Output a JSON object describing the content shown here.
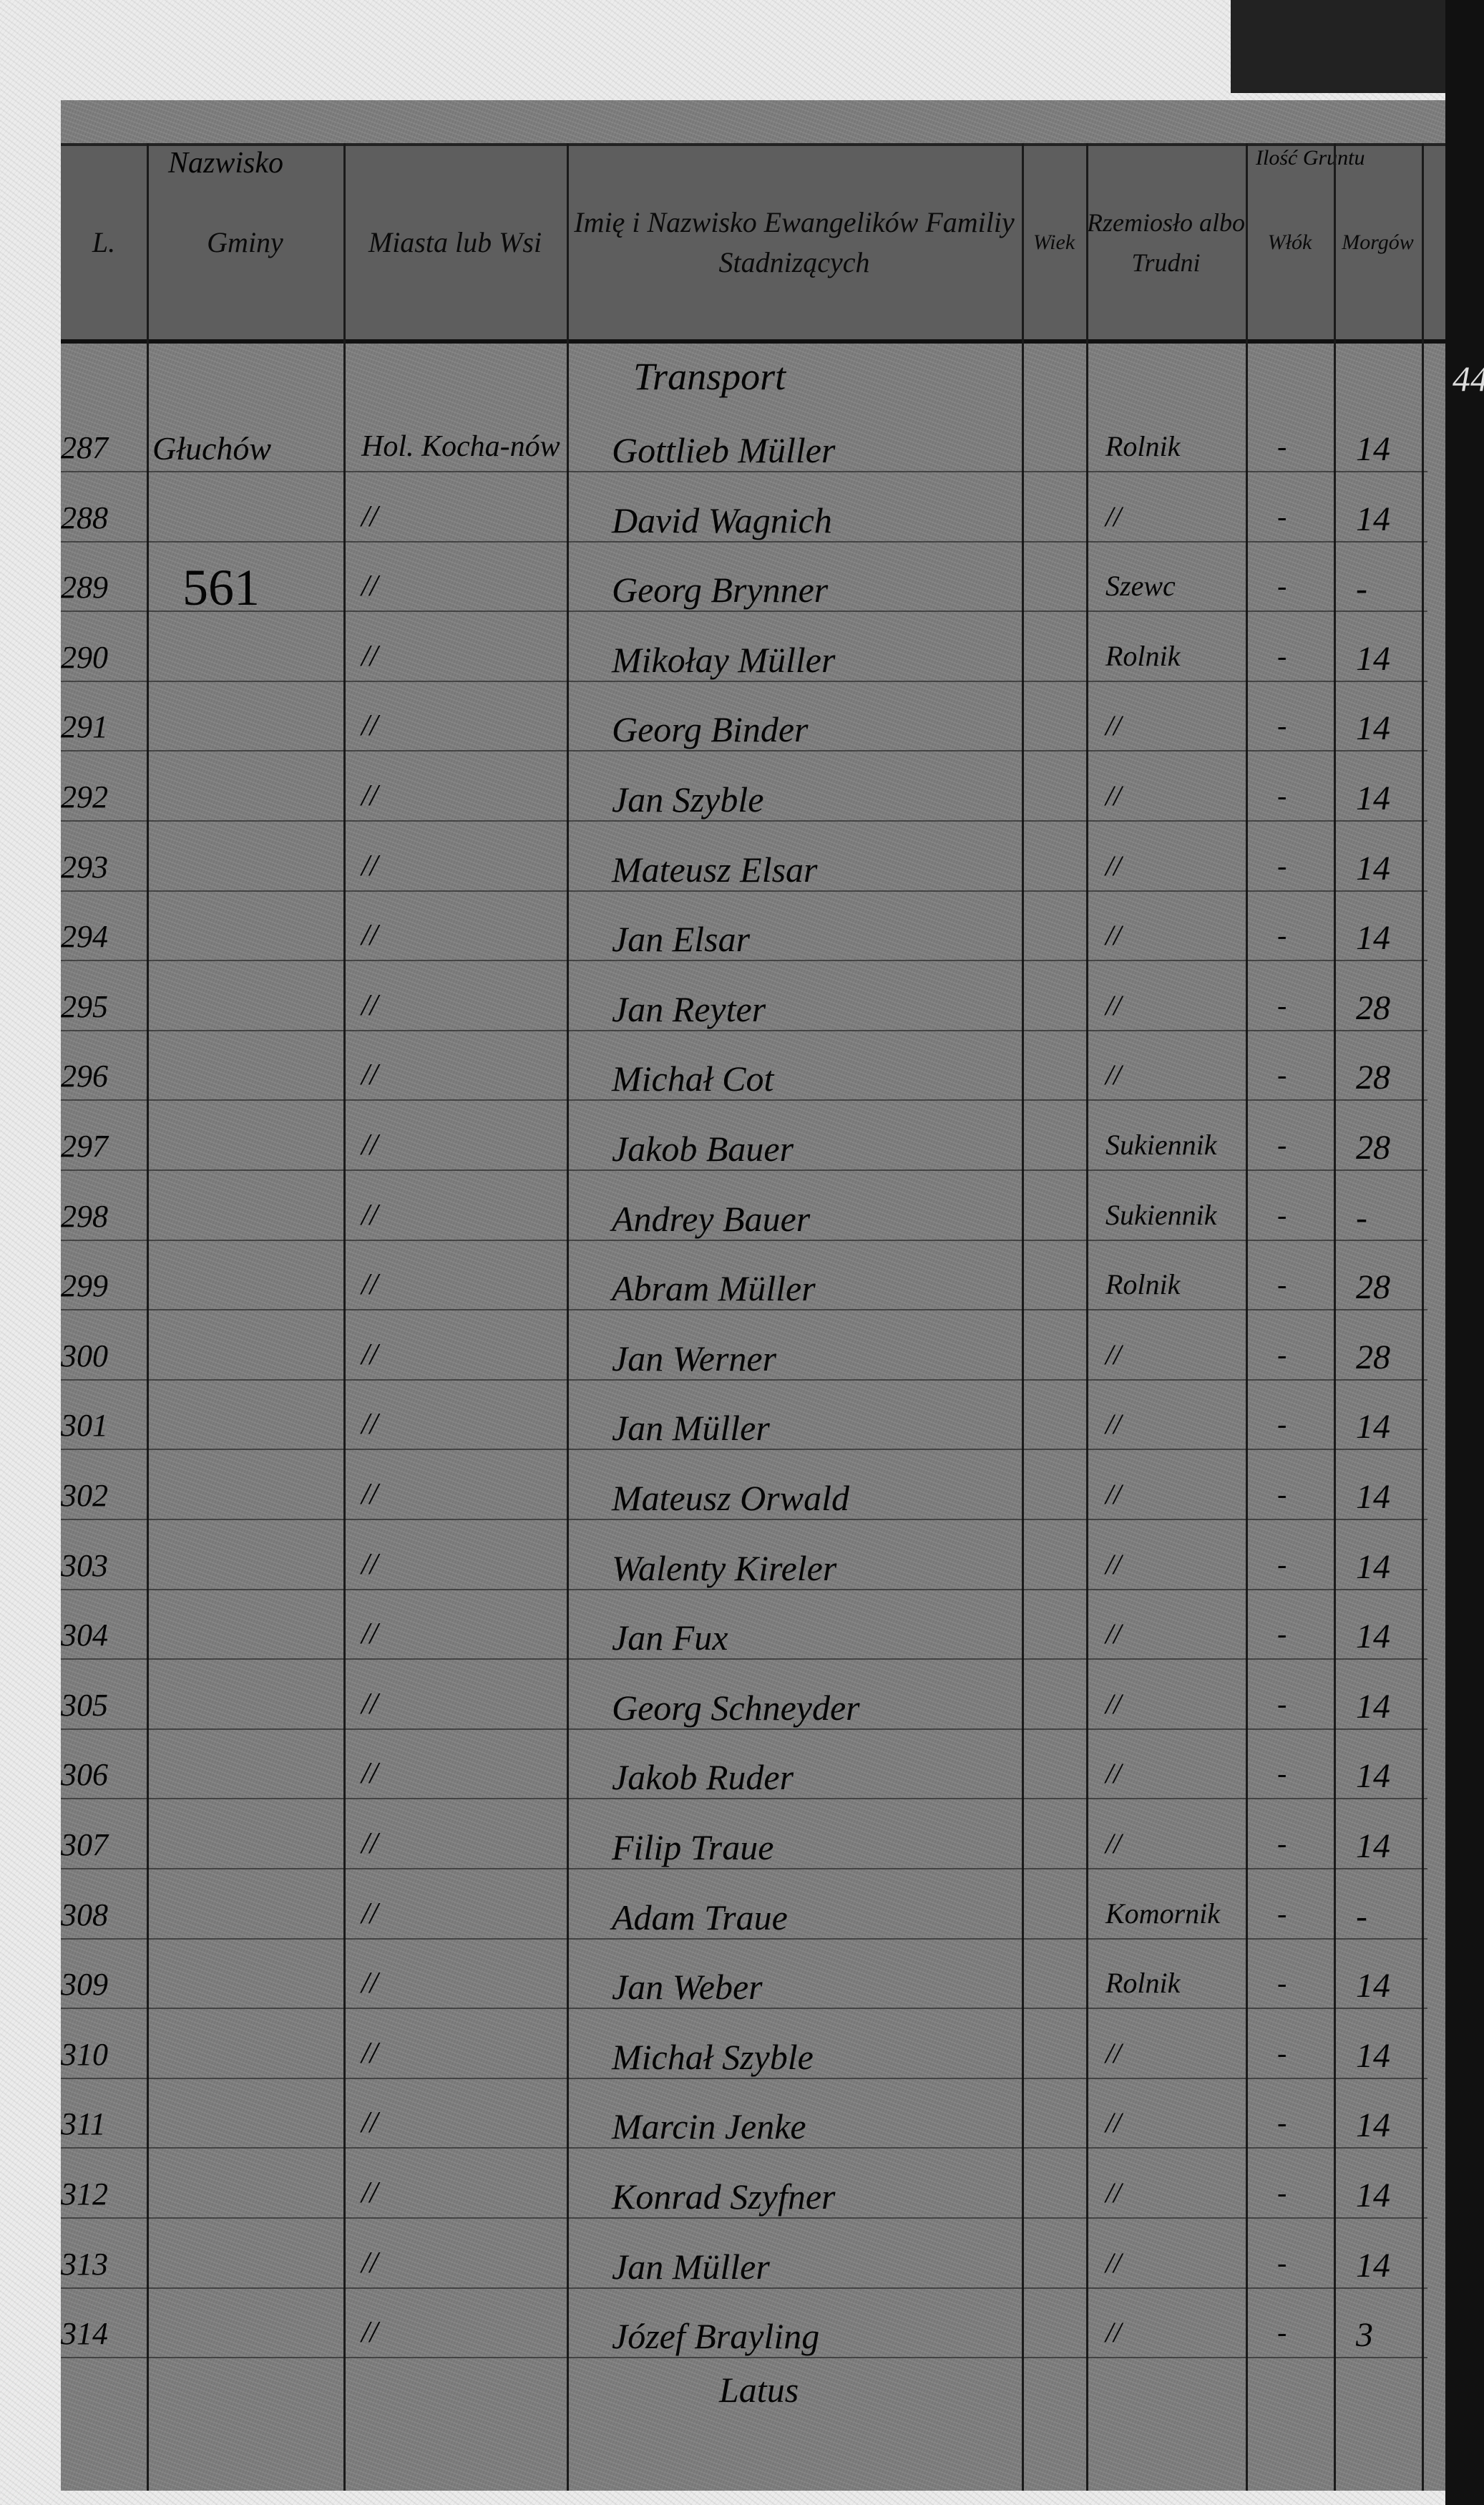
{
  "header": {
    "col_no": "L.",
    "group": "Nazwisko",
    "col_gmina": "Gminy",
    "col_miasto": "Miasta lub Wsi",
    "col_name": "Imię i Nazwisko Ewangelików Familiy Stadnizących",
    "col_wiek": "Wiek",
    "col_rzemiosla": "Rzemiosło albo Trudni",
    "group_grunta": "Ilość Gruntu",
    "col_włoki": "Włók",
    "col_morgi": "Morgów"
  },
  "transport_label": "Transport",
  "latus_label": "Latus",
  "side_number": "44",
  "annotation_561": "561",
  "rows": [
    {
      "no": "287",
      "gmina": "Głuchów",
      "miasto": "Hol. Kocha-nów",
      "name": "Gottlieb Müller",
      "trade": "Rolnik",
      "wlok": "-",
      "morg": "14"
    },
    {
      "no": "288",
      "gmina": "",
      "miasto": "//",
      "name": "David Wagnich",
      "trade": "//",
      "wlok": "-",
      "morg": "14"
    },
    {
      "no": "289",
      "gmina": "",
      "miasto": "//",
      "name": "Georg Brynner",
      "trade": "Szewc",
      "wlok": "-",
      "morg": "-"
    },
    {
      "no": "290",
      "gmina": "",
      "miasto": "//",
      "name": "Mikołay Müller",
      "trade": "Rolnik",
      "wlok": "-",
      "morg": "14"
    },
    {
      "no": "291",
      "gmina": "",
      "miasto": "//",
      "name": "Georg Binder",
      "trade": "//",
      "wlok": "-",
      "morg": "14"
    },
    {
      "no": "292",
      "gmina": "",
      "miasto": "//",
      "name": "Jan Szyble",
      "trade": "//",
      "wlok": "-",
      "morg": "14"
    },
    {
      "no": "293",
      "gmina": "",
      "miasto": "//",
      "name": "Mateusz Elsar",
      "trade": "//",
      "wlok": "-",
      "morg": "14"
    },
    {
      "no": "294",
      "gmina": "",
      "miasto": "//",
      "name": "Jan Elsar",
      "trade": "//",
      "wlok": "-",
      "morg": "14"
    },
    {
      "no": "295",
      "gmina": "",
      "miasto": "//",
      "name": "Jan Reyter",
      "trade": "//",
      "wlok": "-",
      "morg": "28"
    },
    {
      "no": "296",
      "gmina": "",
      "miasto": "//",
      "name": "Michał Cot",
      "trade": "//",
      "wlok": "-",
      "morg": "28"
    },
    {
      "no": "297",
      "gmina": "",
      "miasto": "//",
      "name": "Jakob Bauer",
      "trade": "Sukiennik",
      "wlok": "-",
      "morg": "28"
    },
    {
      "no": "298",
      "gmina": "",
      "miasto": "//",
      "name": "Andrey Bauer",
      "trade": "Sukiennik",
      "wlok": "-",
      "morg": "-"
    },
    {
      "no": "299",
      "gmina": "",
      "miasto": "//",
      "name": "Abram Müller",
      "trade": "Rolnik",
      "wlok": "-",
      "morg": "28"
    },
    {
      "no": "300",
      "gmina": "",
      "miasto": "//",
      "name": "Jan Werner",
      "trade": "//",
      "wlok": "-",
      "morg": "28"
    },
    {
      "no": "301",
      "gmina": "",
      "miasto": "//",
      "name": "Jan Müller",
      "trade": "//",
      "wlok": "-",
      "morg": "14"
    },
    {
      "no": "302",
      "gmina": "",
      "miasto": "//",
      "name": "Mateusz Orwald",
      "trade": "//",
      "wlok": "-",
      "morg": "14"
    },
    {
      "no": "303",
      "gmina": "",
      "miasto": "//",
      "name": "Walenty Kireler",
      "trade": "//",
      "wlok": "-",
      "morg": "14"
    },
    {
      "no": "304",
      "gmina": "",
      "miasto": "//",
      "name": "Jan Fux",
      "trade": "//",
      "wlok": "-",
      "morg": "14"
    },
    {
      "no": "305",
      "gmina": "",
      "miasto": "//",
      "name": "Georg Schneyder",
      "trade": "//",
      "wlok": "-",
      "morg": "14"
    },
    {
      "no": "306",
      "gmina": "",
      "miasto": "//",
      "name": "Jakob Ruder",
      "trade": "//",
      "wlok": "-",
      "morg": "14"
    },
    {
      "no": "307",
      "gmina": "",
      "miasto": "//",
      "name": "Filip Traue",
      "trade": "//",
      "wlok": "-",
      "morg": "14"
    },
    {
      "no": "308",
      "gmina": "",
      "miasto": "//",
      "name": "Adam Traue",
      "trade": "Komornik",
      "wlok": "-",
      "morg": "-"
    },
    {
      "no": "309",
      "gmina": "",
      "miasto": "//",
      "name": "Jan Weber",
      "trade": "Rolnik",
      "wlok": "-",
      "morg": "14"
    },
    {
      "no": "310",
      "gmina": "",
      "miasto": "//",
      "name": "Michał Szyble",
      "trade": "//",
      "wlok": "-",
      "morg": "14"
    },
    {
      "no": "311",
      "gmina": "",
      "miasto": "//",
      "name": "Marcin Jenke",
      "trade": "//",
      "wlok": "-",
      "morg": "14"
    },
    {
      "no": "312",
      "gmina": "",
      "miasto": "//",
      "name": "Konrad Szyfner",
      "trade": "//",
      "wlok": "-",
      "morg": "14"
    },
    {
      "no": "313",
      "gmina": "",
      "miasto": "//",
      "name": "Jan Müller",
      "trade": "//",
      "wlok": "-",
      "morg": "14"
    },
    {
      "no": "314",
      "gmina": "",
      "miasto": "//",
      "name": "Józef Brayling",
      "trade": "//",
      "wlok": "-",
      "morg": "3"
    }
  ]
}
